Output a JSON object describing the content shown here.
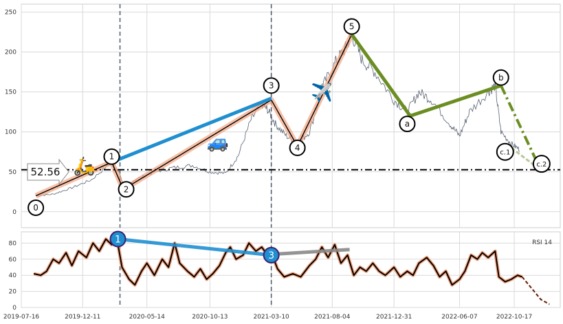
{
  "chart_data": [
    {
      "type": "line",
      "panel": "price",
      "ylim": [
        -20,
        260
      ],
      "y_ticks": [
        0,
        50,
        100,
        150,
        200,
        250
      ],
      "grid": true,
      "series": [
        {
          "style": "price",
          "color": "#556070",
          "points": [
            [
              "2019-08-20",
              20
            ],
            [
              "2019-10-01",
              22
            ],
            [
              "2019-11-15",
              30
            ],
            [
              "2020-01-01",
              40
            ],
            [
              "2020-02-19",
              62
            ],
            [
              "2020-03-10",
              48
            ],
            [
              "2020-03-18",
              30
            ],
            [
              "2020-04-15",
              40
            ],
            [
              "2020-06-01",
              50
            ],
            [
              "2020-07-15",
              55
            ],
            [
              "2020-09-01",
              58
            ],
            [
              "2020-10-13",
              50
            ],
            [
              "2020-11-20",
              48
            ],
            [
              "2020-12-20",
              70
            ],
            [
              "2021-01-20",
              115
            ],
            [
              "2021-02-15",
              135
            ],
            [
              "2021-03-01",
              128
            ],
            [
              "2021-03-20",
              110
            ],
            [
              "2021-04-15",
              95
            ],
            [
              "2021-05-12",
              85
            ],
            [
              "2021-06-10",
              100
            ],
            [
              "2021-07-15",
              160
            ],
            [
              "2021-08-15",
              190
            ],
            [
              "2021-09-05",
              205
            ],
            [
              "2021-09-20",
              222
            ],
            [
              "2021-10-15",
              190
            ],
            [
              "2021-11-15",
              175
            ],
            [
              "2021-12-31",
              140
            ],
            [
              "2022-02-01",
              125
            ],
            [
              "2022-03-01",
              150
            ],
            [
              "2022-04-01",
              140
            ],
            [
              "2022-05-15",
              110
            ],
            [
              "2022-06-07",
              95
            ],
            [
              "2022-07-01",
              125
            ],
            [
              "2022-08-15",
              150
            ],
            [
              "2022-09-01",
              158
            ],
            [
              "2022-09-15",
              100
            ],
            [
              "2022-10-10",
              85
            ],
            [
              "2022-10-30",
              78
            ]
          ]
        },
        {
          "style": "wave-thin",
          "color": "#000000",
          "highlight": "#f4a582",
          "points": [
            [
              "2019-08-20",
              20
            ],
            [
              "2020-02-19",
              62
            ],
            [
              "2020-03-18",
              28
            ],
            [
              "2021-03-10",
              140
            ],
            [
              "2021-05-12",
              82
            ],
            [
              "2021-09-20",
              222
            ]
          ]
        },
        {
          "style": "wave-thick",
          "color": "#1f8fd0",
          "points": [
            [
              "2020-02-19",
              62
            ],
            [
              "2021-03-10",
              142
            ]
          ]
        },
        {
          "style": "wave-thick",
          "color": "#6b8e23",
          "points": [
            [
              "2021-09-20",
              222
            ],
            [
              "2022-02-08",
              120
            ],
            [
              "2022-09-15",
              158
            ]
          ]
        },
        {
          "style": "wave-dashdot",
          "color": "#6b8e23",
          "points": [
            [
              "2022-09-15",
              158
            ],
            [
              "2022-12-20",
              52
            ]
          ]
        },
        {
          "style": "wave-dashed",
          "color": "#b5c79a",
          "points": [
            [
              "2022-10-10",
              80
            ],
            [
              "2022-12-20",
              52
            ]
          ]
        }
      ],
      "annotations": {
        "threshold_value": 52.56,
        "threshold_label": "52.56",
        "vlines": [
          "2020-03-10",
          "2021-03-10"
        ],
        "wave_labels": [
          {
            "text": "0",
            "x": "2019-08-20",
            "y": 5
          },
          {
            "text": "1",
            "x": "2020-02-19",
            "y": 69
          },
          {
            "text": "2",
            "x": "2020-03-25",
            "y": 28
          },
          {
            "text": "3",
            "x": "2021-03-10",
            "y": 158
          },
          {
            "text": "4",
            "x": "2021-05-12",
            "y": 80
          },
          {
            "text": "5",
            "x": "2021-09-20",
            "y": 232
          },
          {
            "text": "a",
            "x": "2022-02-01",
            "y": 110
          },
          {
            "text": "b",
            "x": "2022-09-15",
            "y": 168
          },
          {
            "text": "c.1",
            "x": "2022-09-25",
            "y": 75
          },
          {
            "text": "c.2",
            "x": "2022-12-22",
            "y": 60
          }
        ],
        "emoji_markers": [
          {
            "glyph": "🛵",
            "x": "2019-12-15",
            "y": 50
          },
          {
            "glyph": "🚙",
            "x": "2020-11-01",
            "y": 80
          },
          {
            "glyph": "✈️",
            "x": "2021-07-10",
            "y": 142
          }
        ]
      }
    },
    {
      "type": "line",
      "panel": "rsi",
      "legend_label": "RSI 14",
      "ylim": [
        0,
        94
      ],
      "y_ticks": [
        0,
        20,
        40,
        60,
        80
      ],
      "grid": true,
      "x_tick_labels": [
        "2019-07-16",
        "2019-12-11",
        "2020-05-14",
        "2020-10-13",
        "2021-03-10",
        "2021-08-04",
        "2021-12-31",
        "2022-06-07",
        "2022-10-17"
      ],
      "x_range": [
        "2019-07-16",
        "2023-02-05"
      ],
      "series": [
        {
          "style": "rsi",
          "color": "#000000",
          "highlight": "#f4a582",
          "points": [
            [
              "2019-08-15",
              42
            ],
            [
              "2019-09-01",
              40
            ],
            [
              "2019-09-15",
              45
            ],
            [
              "2019-10-01",
              60
            ],
            [
              "2019-10-15",
              55
            ],
            [
              "2019-11-01",
              68
            ],
            [
              "2019-11-15",
              52
            ],
            [
              "2019-12-01",
              70
            ],
            [
              "2019-12-20",
              62
            ],
            [
              "2020-01-05",
              80
            ],
            [
              "2020-01-20",
              70
            ],
            [
              "2020-02-05",
              85
            ],
            [
              "2020-02-19",
              78
            ],
            [
              "2020-03-01",
              90
            ],
            [
              "2020-03-15",
              50
            ],
            [
              "2020-04-01",
              35
            ],
            [
              "2020-04-15",
              28
            ],
            [
              "2020-05-01",
              45
            ],
            [
              "2020-05-14",
              55
            ],
            [
              "2020-06-01",
              40
            ],
            [
              "2020-06-20",
              60
            ],
            [
              "2020-07-05",
              50
            ],
            [
              "2020-07-20",
              80
            ],
            [
              "2020-08-01",
              55
            ],
            [
              "2020-08-20",
              45
            ],
            [
              "2020-09-05",
              38
            ],
            [
              "2020-09-20",
              48
            ],
            [
              "2020-10-05",
              35
            ],
            [
              "2020-10-20",
              42
            ],
            [
              "2020-11-05",
              52
            ],
            [
              "2020-11-20",
              68
            ],
            [
              "2020-12-01",
              75
            ],
            [
              "2020-12-15",
              60
            ],
            [
              "2021-01-01",
              65
            ],
            [
              "2021-01-15",
              80
            ],
            [
              "2021-02-01",
              70
            ],
            [
              "2021-02-15",
              75
            ],
            [
              "2021-03-01",
              65
            ],
            [
              "2021-03-10",
              68
            ],
            [
              "2021-03-25",
              48
            ],
            [
              "2021-04-10",
              38
            ],
            [
              "2021-05-01",
              42
            ],
            [
              "2021-05-20",
              38
            ],
            [
              "2021-06-10",
              52
            ],
            [
              "2021-06-25",
              60
            ],
            [
              "2021-07-10",
              75
            ],
            [
              "2021-07-25",
              62
            ],
            [
              "2021-08-10",
              78
            ],
            [
              "2021-08-25",
              55
            ],
            [
              "2021-09-10",
              65
            ],
            [
              "2021-09-25",
              40
            ],
            [
              "2021-10-10",
              50
            ],
            [
              "2021-10-25",
              45
            ],
            [
              "2021-11-10",
              55
            ],
            [
              "2021-11-25",
              45
            ],
            [
              "2021-12-10",
              40
            ],
            [
              "2021-12-31",
              50
            ],
            [
              "2022-01-15",
              38
            ],
            [
              "2022-02-01",
              45
            ],
            [
              "2022-02-15",
              40
            ],
            [
              "2022-03-01",
              55
            ],
            [
              "2022-03-20",
              62
            ],
            [
              "2022-04-05",
              52
            ],
            [
              "2022-04-20",
              38
            ],
            [
              "2022-05-05",
              45
            ],
            [
              "2022-05-20",
              28
            ],
            [
              "2022-06-07",
              35
            ],
            [
              "2022-06-20",
              45
            ],
            [
              "2022-07-05",
              65
            ],
            [
              "2022-07-20",
              60
            ],
            [
              "2022-08-01",
              68
            ],
            [
              "2022-08-15",
              62
            ],
            [
              "2022-09-01",
              70
            ],
            [
              "2022-09-10",
              38
            ],
            [
              "2022-09-25",
              32
            ],
            [
              "2022-10-10",
              35
            ],
            [
              "2022-10-25",
              40
            ],
            [
              "2022-11-05",
              38
            ]
          ]
        },
        {
          "style": "rsi-forecast",
          "color": "#000000",
          "highlight": "#f4a582",
          "points": [
            [
              "2022-11-05",
              38
            ],
            [
              "2022-12-01",
              22
            ],
            [
              "2022-12-20",
              10
            ],
            [
              "2023-01-10",
              4
            ]
          ]
        },
        {
          "style": "wave-thick",
          "color": "#1f8fd0",
          "points": [
            [
              "2020-03-05",
              85
            ],
            [
              "2021-03-10",
              65
            ]
          ]
        },
        {
          "style": "wave-thick",
          "color": "#888888",
          "points": [
            [
              "2021-03-10",
              66
            ],
            [
              "2021-09-15",
              72
            ]
          ]
        }
      ],
      "annotations": {
        "rsi_markers": [
          {
            "text": "1",
            "x": "2020-03-05",
            "y": 85
          },
          {
            "text": "3",
            "x": "2021-03-10",
            "y": 65
          }
        ]
      }
    }
  ],
  "colors": {
    "background": "#ffffff",
    "grid": "#d9d9d9",
    "vline": "#556070",
    "threshold": "#000000",
    "rsi_marker_fill": "#1f8fd0",
    "rsi_marker_stroke": "#3a1f70"
  }
}
